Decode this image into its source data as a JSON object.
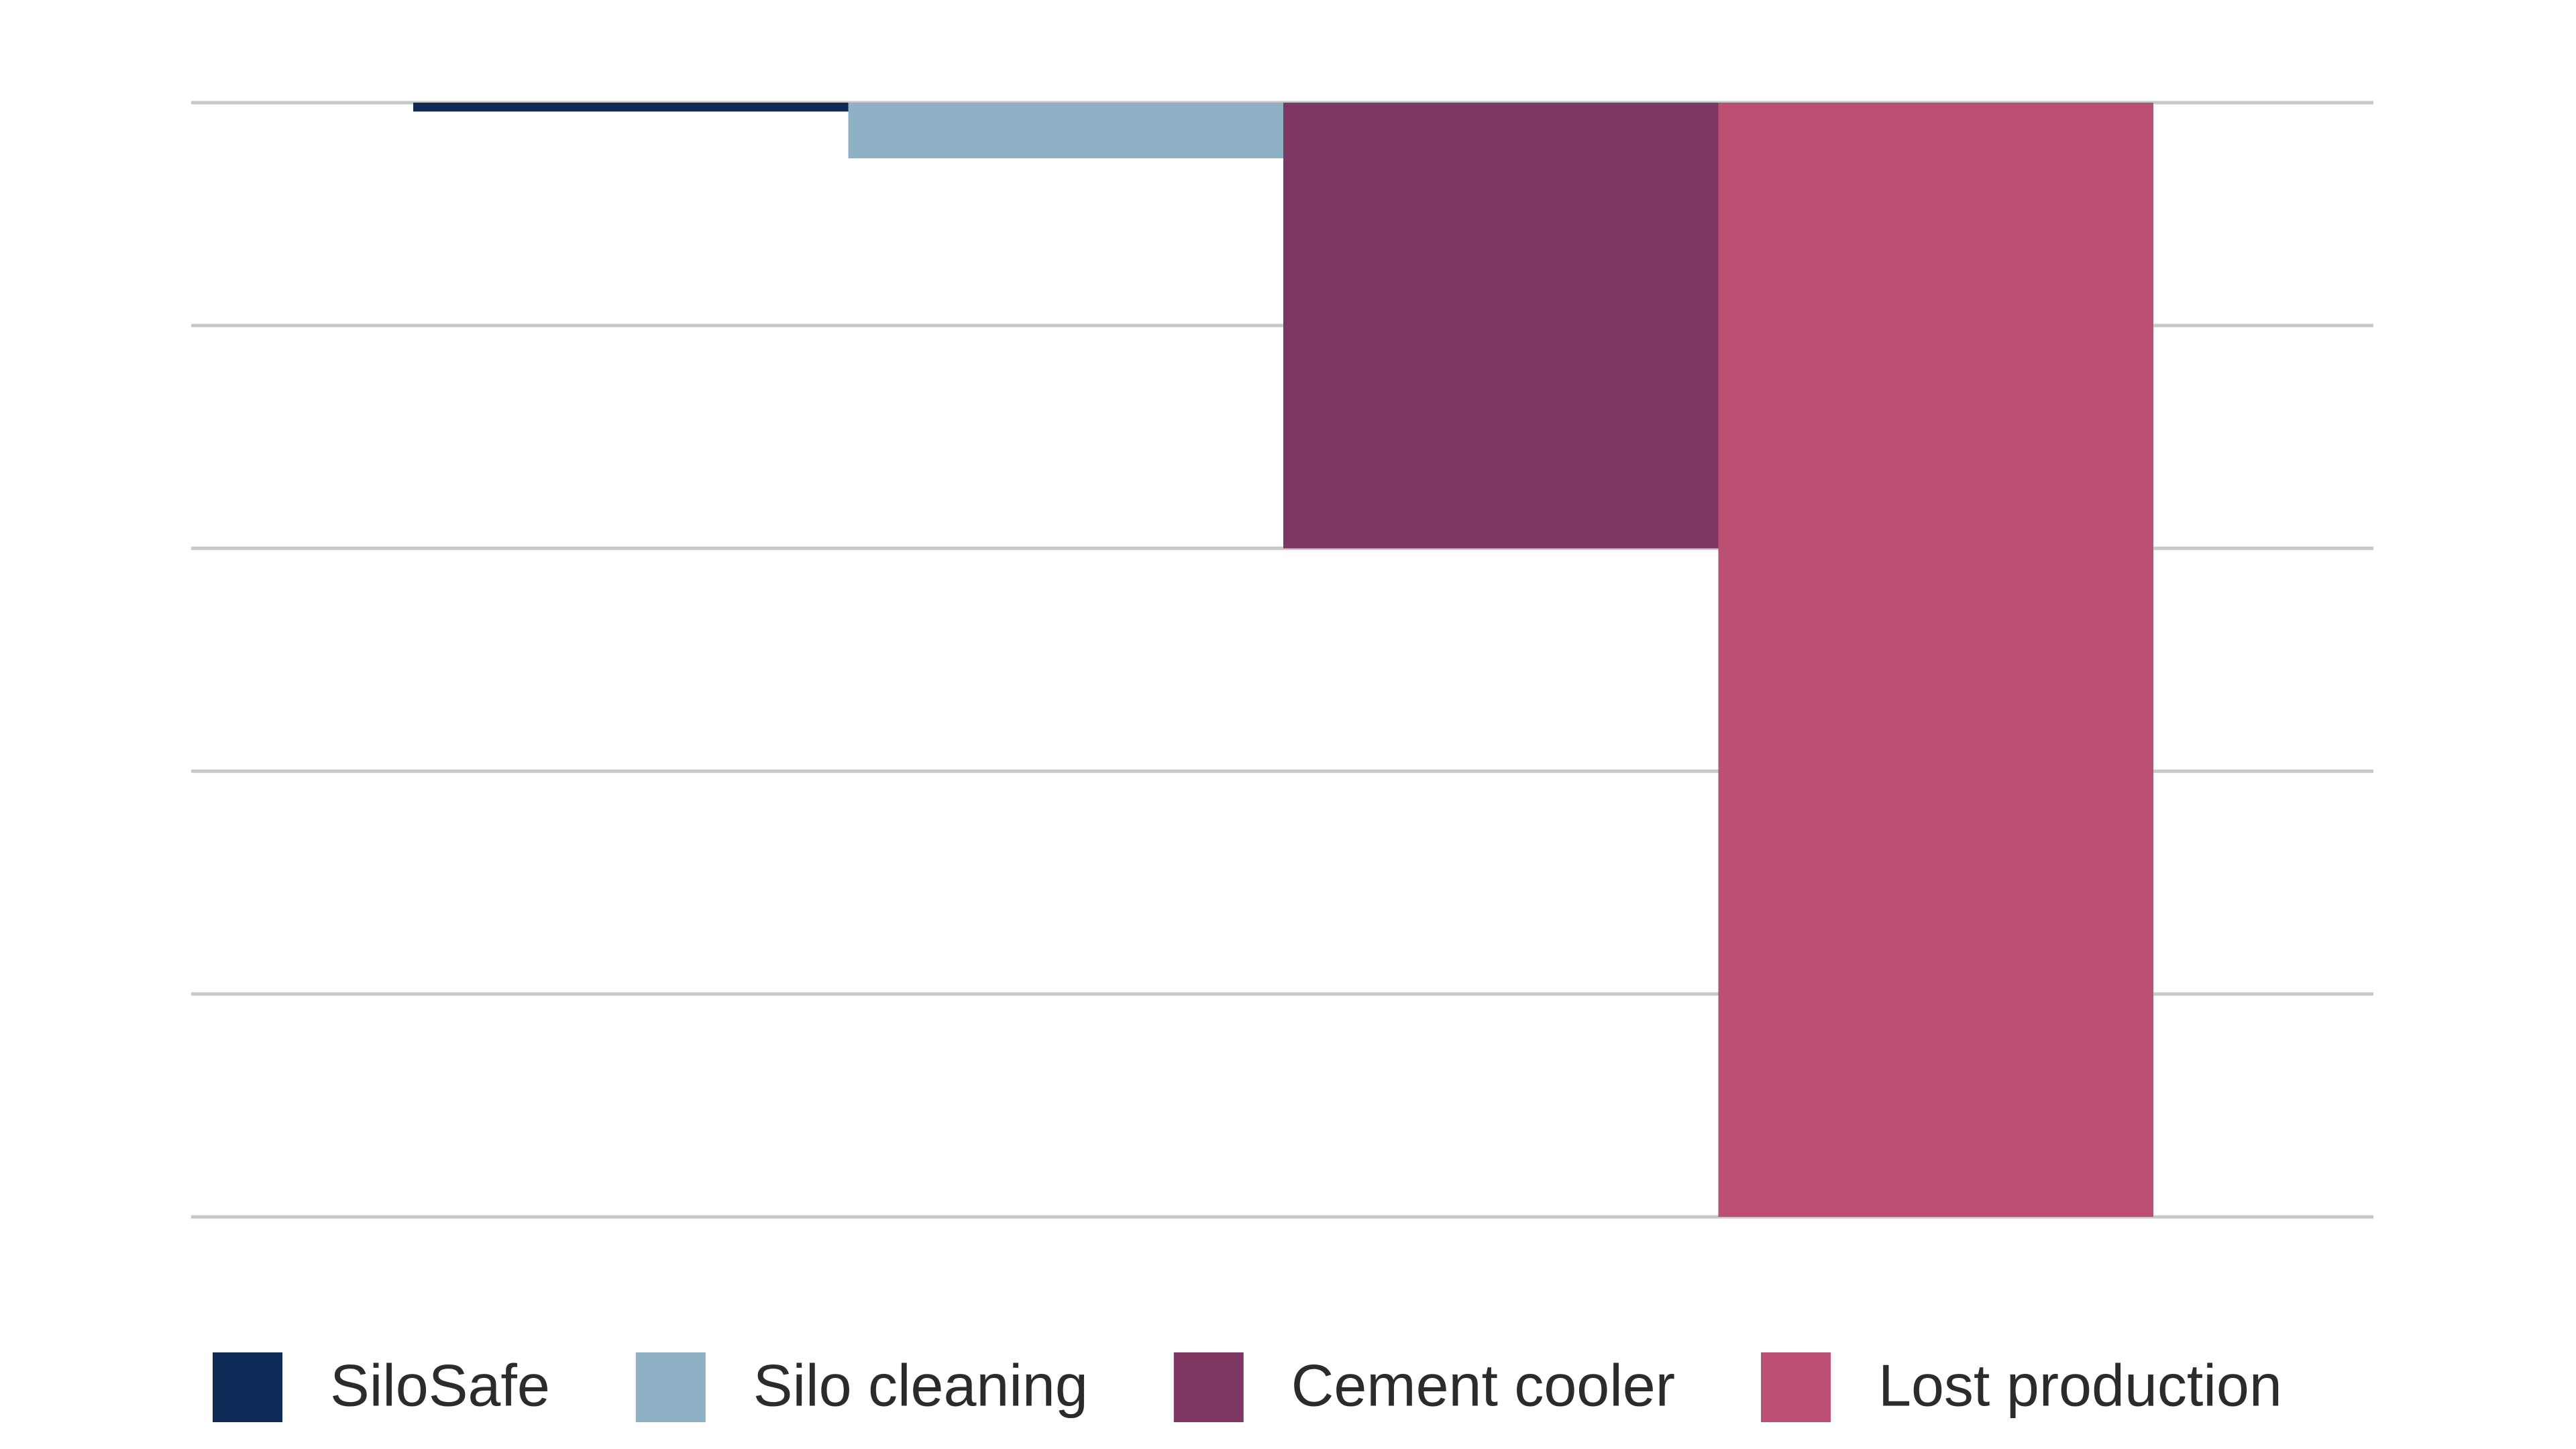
{
  "chart_data": {
    "type": "bar",
    "categories": [
      null
    ],
    "series": [
      {
        "name": "SiloSafe",
        "color": "#0d2b55",
        "values": [
          -0.04
        ]
      },
      {
        "name": "Silo cleaning",
        "color": "#8fb1c4",
        "values": [
          -0.25
        ]
      },
      {
        "name": "Cement cooler",
        "color": "#7e3662",
        "values": [
          -2
        ]
      },
      {
        "name": "Lost production",
        "color": "#bb5073",
        "values": [
          -5
        ]
      }
    ],
    "ylim": [
      -5,
      0
    ],
    "yticks": [
      0,
      -1,
      -2,
      -3,
      -4,
      -5
    ],
    "grid": true,
    "legend": "bottom"
  }
}
